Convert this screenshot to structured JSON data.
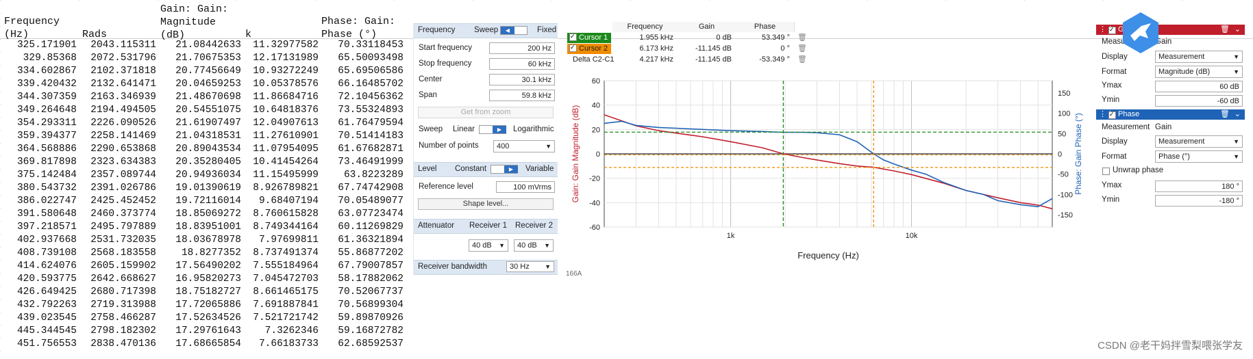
{
  "sheet": {
    "headers": [
      {
        "line1": "Frequency",
        "line2": "(Hz)",
        "line3": ""
      },
      {
        "line1": "",
        "line2": "Rads",
        "line3": ""
      },
      {
        "line1": "Gain: Gain:",
        "line2": "Magnitude",
        "line3": "(dB)"
      },
      {
        "line1": "",
        "line2": "k",
        "line3": ""
      },
      {
        "line1": "Phase: Gain:",
        "line2": "Phase (°)",
        "line3": ""
      }
    ],
    "rows": [
      [
        "325.171901",
        "2043.115311",
        "21.08442633",
        "11.32977582",
        "70.33118453"
      ],
      [
        "329.85368",
        "2072.531796",
        "21.70675353",
        "12.17131989",
        "65.50093498"
      ],
      [
        "334.602867",
        "2102.371818",
        "20.77456649",
        "10.93272249",
        "65.69506586"
      ],
      [
        "339.420432",
        "2132.641471",
        "20.04659253",
        "10.05378576",
        "66.16485702"
      ],
      [
        "344.307359",
        "2163.346939",
        "21.48670698",
        "11.86684716",
        "72.10456362"
      ],
      [
        "349.264648",
        "2194.494505",
        "20.54551075",
        "10.64818376",
        "73.55324893"
      ],
      [
        "354.293311",
        "2226.090526",
        "21.61907497",
        "12.04907613",
        "61.76479594"
      ],
      [
        "359.394377",
        "2258.141469",
        "21.04318531",
        "11.27610901",
        "70.51414183"
      ],
      [
        "364.568886",
        "2290.653868",
        "20.89043534",
        "11.07954095",
        "61.67682871"
      ],
      [
        "369.817898",
        "2323.634383",
        "20.35280405",
        "10.41454264",
        "73.46491999"
      ],
      [
        "375.142484",
        "2357.089744",
        "20.94936034",
        "11.15495999",
        "63.8223289"
      ],
      [
        "380.543732",
        "2391.026786",
        "19.01390619",
        "8.926789821",
        "67.74742908"
      ],
      [
        "386.022747",
        "2425.452452",
        "19.72116014",
        "9.68407194",
        "70.05489077"
      ],
      [
        "391.580648",
        "2460.373774",
        "18.85069272",
        "8.760615828",
        "63.07723474"
      ],
      [
        "397.218571",
        "2495.797889",
        "18.83951001",
        "8.749344164",
        "60.11269829"
      ],
      [
        "402.937668",
        "2531.732035",
        "18.03678978",
        "7.97699811",
        "61.36321894"
      ],
      [
        "408.739108",
        "2568.183558",
        "18.8277352",
        "8.737491374",
        "55.86877202"
      ],
      [
        "414.624076",
        "2605.159902",
        "17.56490202",
        "7.555184964",
        "67.79007857"
      ],
      [
        "420.593775",
        "2642.668627",
        "16.95820273",
        "7.045472703",
        "58.17882062"
      ],
      [
        "426.649425",
        "2680.717398",
        "18.75182727",
        "8.661465175",
        "70.52067737"
      ],
      [
        "432.792263",
        "2719.313988",
        "17.72065886",
        "7.691887841",
        "70.56899304"
      ],
      [
        "439.023545",
        "2758.466287",
        "17.52634526",
        "7.521721742",
        "59.89870926"
      ],
      [
        "445.344545",
        "2798.182302",
        "17.29761643",
        "7.3262346",
        "59.16872782"
      ],
      [
        "451.756553",
        "2838.470136",
        "17.68665854",
        "7.66183733",
        "62.68592537"
      ]
    ]
  },
  "settings": {
    "sweep": {
      "header": "Frequency",
      "sweep_label": "Sweep",
      "fixed_label": "Fixed",
      "start_label": "Start frequency",
      "start_value": "200 Hz",
      "stop_label": "Stop frequency",
      "stop_value": "60 kHz",
      "center_label": "Center",
      "center_value": "30.1 kHz",
      "span_label": "Span",
      "span_value": "59.8 kHz",
      "zoom_button": "Get from zoom",
      "sweep_mode_label": "Sweep",
      "linear_label": "Linear",
      "log_label": "Logarithmic",
      "points_label": "Number of points",
      "points_value": "400"
    },
    "level": {
      "header": "Level",
      "constant_label": "Constant",
      "variable_label": "Variable",
      "ref_label": "Reference level",
      "ref_value": "100 mVrms",
      "shape_button": "Shape level..."
    },
    "attenuator": {
      "header": "Attenuator",
      "r1_label": "Receiver 1",
      "r2_label": "Receiver 2",
      "r1_value": "40 dB",
      "r2_value": "40 dB"
    },
    "bandwidth": {
      "header": "Receiver bandwidth",
      "value": "30 Hz"
    }
  },
  "cursors": {
    "columns": [
      "Frequency",
      "Gain",
      "Phase"
    ],
    "rows": [
      {
        "name": "Cursor 1",
        "freq": "1.955 kHz",
        "gain": "0 dB",
        "phase": "53.349 °",
        "color": "#1a8a1a"
      },
      {
        "name": "Cursor 2",
        "freq": "6.173 kHz",
        "gain": "-11.145 dB",
        "phase": "0 °",
        "color": "#f08c00"
      },
      {
        "name": "Delta C2-C1",
        "freq": "4.217 kHz",
        "gain": "-11.145 dB",
        "phase": "-53.349 °",
        "color": ""
      }
    ]
  },
  "plot": {
    "left_axis_label": "Gain: Gain Magnitude (dB)",
    "right_axis_label": "Phase: Gain Phase (°)",
    "x_axis_label": "Frequency (Hz)",
    "left_ticks": [
      "60",
      "40",
      "20",
      "0",
      "-20",
      "-40",
      "-60"
    ],
    "right_ticks": [
      "150",
      "100",
      "50",
      "0",
      "-50",
      "-100",
      "-150"
    ],
    "x_ticks": [
      "1k",
      "10k"
    ],
    "footer_text": "166A"
  },
  "chart_data": {
    "type": "line",
    "xlabel": "Frequency (Hz)",
    "ylabel": "Gain: Gain Magnitude (dB)",
    "y2label": "Phase: Gain Phase (°)",
    "x_scale": "log",
    "xlim": [
      200,
      60000
    ],
    "ylim": [
      -60,
      60
    ],
    "y2lim": [
      -180,
      180
    ],
    "series": [
      {
        "name": "Gain: Gain Magnitude (dB)",
        "color": "#c0202c",
        "x": [
          200,
          250,
          300,
          400,
          500,
          700,
          1000,
          1500,
          1955,
          2500,
          3000,
          4000,
          5000,
          6173,
          8000,
          10000,
          15000,
          20000,
          30000,
          40000,
          50000,
          60000
        ],
        "y": [
          32,
          27,
          23,
          19,
          17,
          14,
          10,
          5,
          0,
          -3,
          -5,
          -8,
          -10,
          -11,
          -14,
          -17,
          -24,
          -30,
          -36,
          -40,
          -42,
          -45
        ]
      },
      {
        "name": "Phase: Gain Phase (°)",
        "color": "#1f63b6",
        "x": [
          200,
          250,
          300,
          400,
          500,
          700,
          1000,
          1500,
          1955,
          2500,
          3000,
          4000,
          5000,
          6173,
          7000,
          8000,
          10000,
          12000,
          15000,
          20000,
          25000,
          30000,
          40000,
          50000,
          60000
        ],
        "y": [
          75,
          80,
          70,
          65,
          63,
          60,
          57,
          55,
          53,
          53,
          52,
          47,
          30,
          0,
          -15,
          -25,
          -40,
          -50,
          -70,
          -90,
          -100,
          -115,
          -125,
          -130,
          -110
        ]
      }
    ],
    "cursors": [
      {
        "name": "Cursor 1",
        "x": 1955,
        "gain": 0,
        "phase": 53.349
      },
      {
        "name": "Cursor 2",
        "x": 6173,
        "gain": -11.145,
        "phase": 0
      }
    ]
  },
  "right_panel": {
    "gain": {
      "header": "Gain",
      "meas_label": "Measurement",
      "meas_value": "Gain",
      "display_label": "Display",
      "display_value": "Measurement",
      "format_label": "Format",
      "format_value": "Magnitude (dB)",
      "ymax_label": "Ymax",
      "ymax_value": "60 dB",
      "ymin_label": "Ymin",
      "ymin_value": "-60 dB"
    },
    "phase": {
      "header": "Phase",
      "meas_label": "Measurement",
      "meas_value": "Gain",
      "display_label": "Display",
      "display_value": "Measurement",
      "format_label": "Format",
      "format_value": "Phase (°)",
      "unwrap_label": "Unwrap phase",
      "ymax_label": "Ymax",
      "ymax_value": "180 °",
      "ymin_label": "Ymin",
      "ymin_value": "-180 °"
    }
  },
  "watermark": "CSDN @老干妈拌雪梨喂张学友"
}
